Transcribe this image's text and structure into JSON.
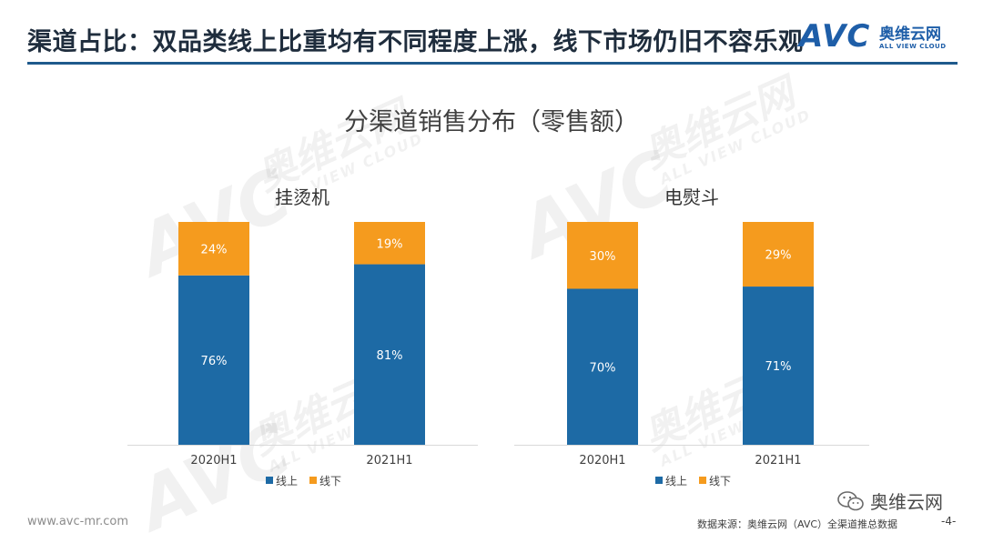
{
  "page_title": "渠道占比：双品类线上比重均有不同程度上涨，线下市场仍旧不容乐观",
  "logo": {
    "mark": "AVC",
    "cn": "奥维云网",
    "en": "ALL VIEW CLOUD"
  },
  "watermark": {
    "mark": "AVC",
    "cn": "奥维云网",
    "en": "ALL VIEW CLOUD"
  },
  "footer": {
    "url": "www.avc-mr.com",
    "source": "数据来源：奥维云网（AVC）全渠道推总数据",
    "page": "-4-",
    "wechat_name": "奥维云网"
  },
  "colors": {
    "online": "#1d6aa5",
    "offline": "#f59b1e",
    "accent": "#1f5a8c"
  },
  "chart_data": [
    {
      "type": "bar",
      "stacked": true,
      "suptitle": "分渠道销售分布（零售额）",
      "title": "挂烫机",
      "categories": [
        "2020H1",
        "2021H1"
      ],
      "series": [
        {
          "name": "线上",
          "values": [
            76,
            81
          ],
          "labels": [
            "76%",
            "81%"
          ]
        },
        {
          "name": "线下",
          "values": [
            24,
            19
          ],
          "labels": [
            "24%",
            "19%"
          ]
        }
      ],
      "ylim": [
        0,
        100
      ],
      "grid": false,
      "legend": "bottom"
    },
    {
      "type": "bar",
      "stacked": true,
      "title": "电熨斗",
      "categories": [
        "2020H1",
        "2021H1"
      ],
      "series": [
        {
          "name": "线上",
          "values": [
            70,
            71
          ],
          "labels": [
            "70%",
            "71%"
          ]
        },
        {
          "name": "线下",
          "values": [
            30,
            29
          ],
          "labels": [
            "30%",
            "29%"
          ]
        }
      ],
      "ylim": [
        0,
        100
      ],
      "grid": false,
      "legend": "bottom"
    }
  ]
}
